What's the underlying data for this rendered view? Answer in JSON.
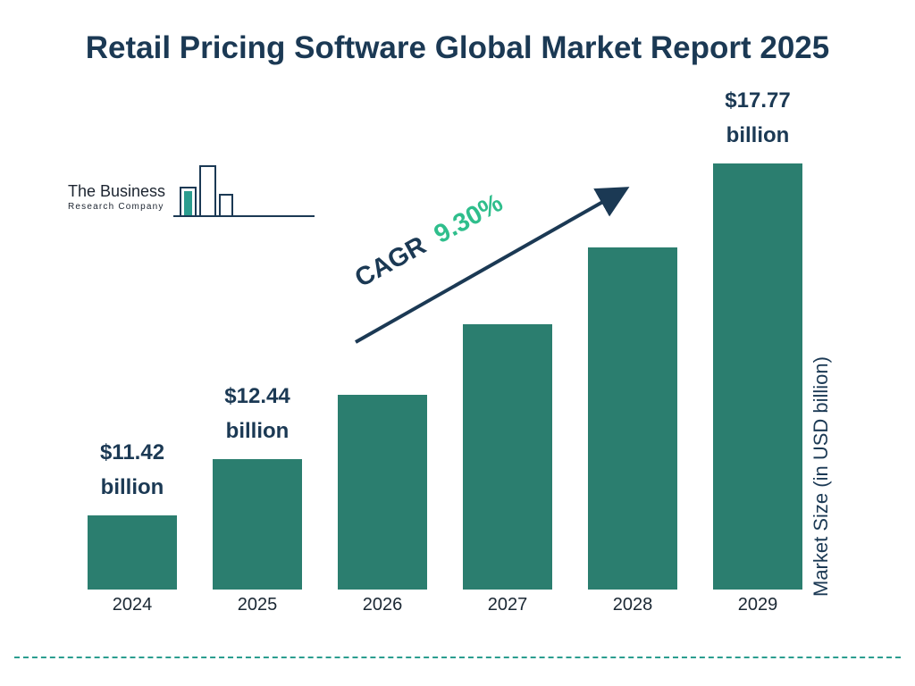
{
  "title": "Retail Pricing Software Global Market Report 2025",
  "logo": {
    "line1": "The Business",
    "line2": "Research Company"
  },
  "cagr": {
    "prefix": "CAGR",
    "value": "9.30%"
  },
  "ylabel": "Market Size (in USD billion)",
  "colors": {
    "bar": "#2b7e6f",
    "navy": "#1b3954",
    "accent_green": "#2fbe8c",
    "dashed_line": "#2b9d8f"
  },
  "chart_data": {
    "type": "bar",
    "title": "Retail Pricing Software Global Market Report 2025",
    "categories": [
      "2024",
      "2025",
      "2026",
      "2027",
      "2028",
      "2029"
    ],
    "values": [
      11.42,
      12.44,
      13.6,
      14.87,
      16.25,
      17.77
    ],
    "value_labels": [
      {
        "index": 0,
        "amount": "$11.42",
        "unit": "billion"
      },
      {
        "index": 1,
        "amount": "$12.44",
        "unit": "billion"
      },
      {
        "index": 5,
        "amount": "$17.77",
        "unit": "billion"
      }
    ],
    "xlabel": "",
    "ylabel": "Market Size (in USD billion)",
    "annotation": "CAGR 9.30%",
    "legend": false,
    "grid": false,
    "bar_color": "#2b7e6f"
  }
}
